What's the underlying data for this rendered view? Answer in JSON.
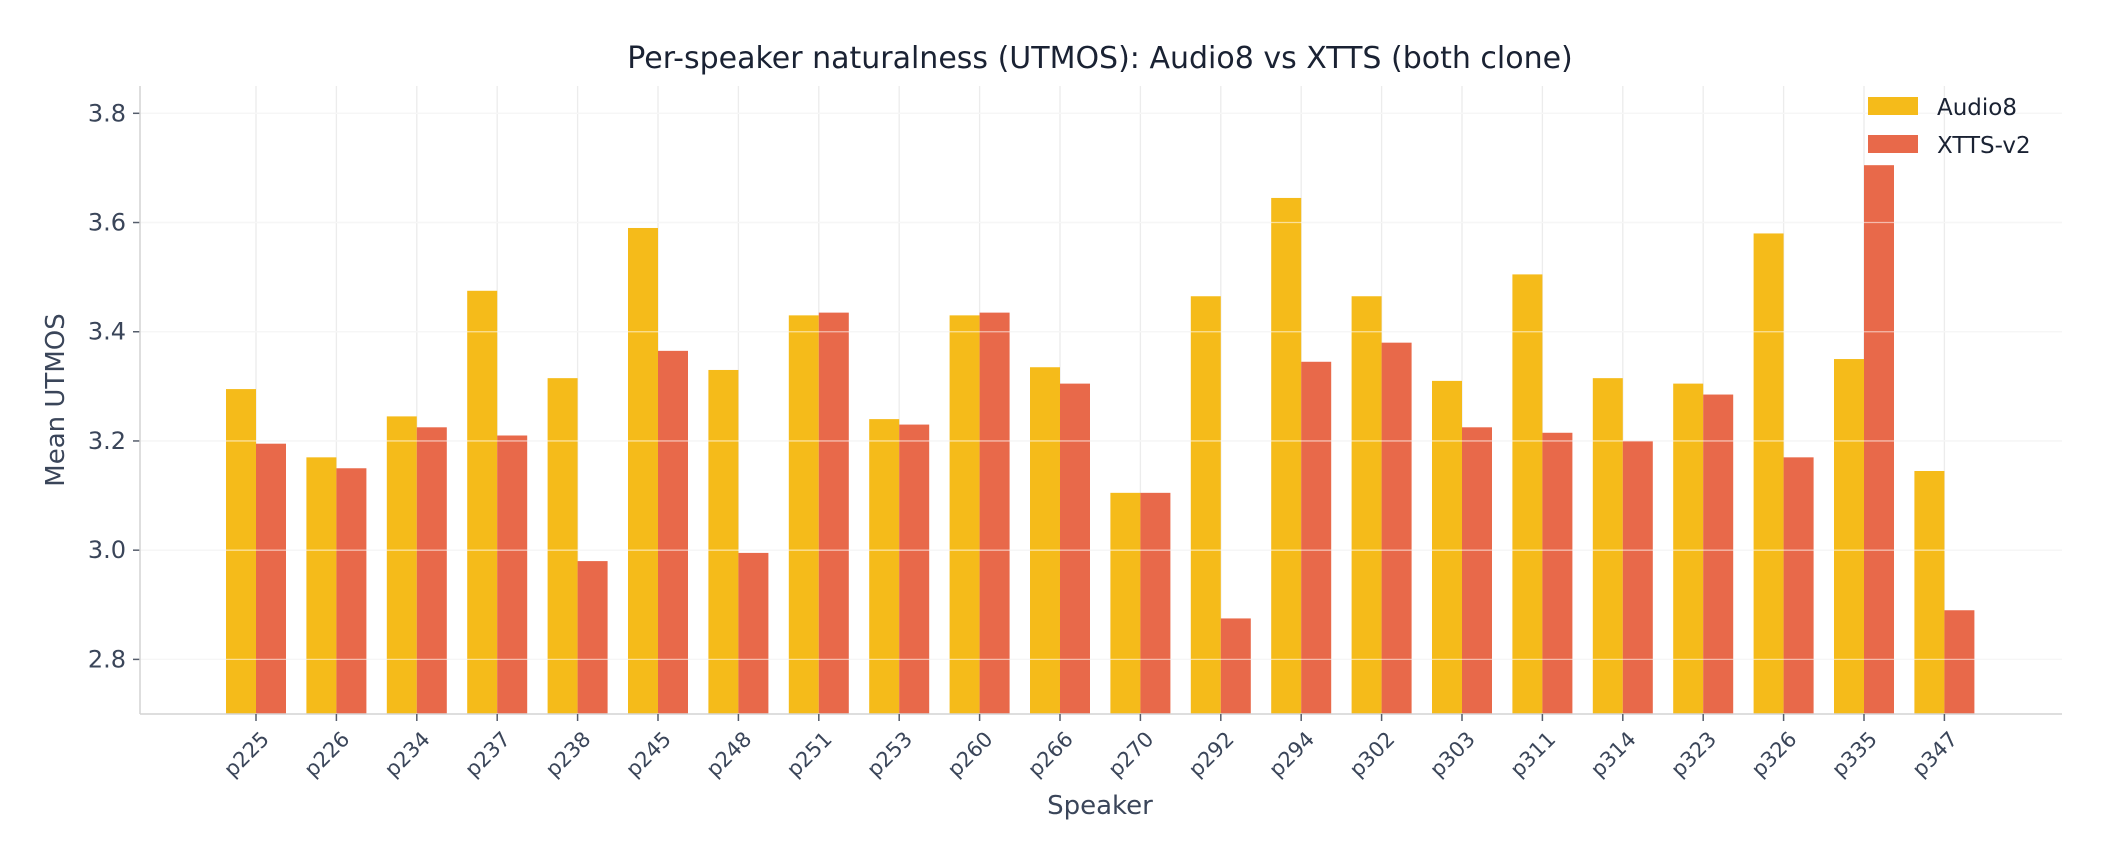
{
  "chart_data": {
    "type": "bar",
    "title": "Per-speaker naturalness (UTMOS): Audio8 vs XTTS (both clone)",
    "xlabel": "Speaker",
    "ylabel": "Mean UTMOS",
    "ylim": [
      2.7,
      3.85
    ],
    "yticks": [
      "2.8",
      "3.0",
      "3.2",
      "3.4",
      "3.6",
      "3.8"
    ],
    "grid": true,
    "legend_position": "top-right",
    "categories": [
      "p225",
      "p226",
      "p234",
      "p237",
      "p238",
      "p245",
      "p248",
      "p251",
      "p253",
      "p260",
      "p266",
      "p270",
      "p292",
      "p294",
      "p302",
      "p303",
      "p311",
      "p314",
      "p323",
      "p326",
      "p335",
      "p347"
    ],
    "series": [
      {
        "name": "Audio8",
        "color": "#f5bb1a",
        "values": [
          3.295,
          3.17,
          3.245,
          3.475,
          3.315,
          3.59,
          3.33,
          3.43,
          3.24,
          3.43,
          3.335,
          3.105,
          3.465,
          3.645,
          3.465,
          3.31,
          3.505,
          3.315,
          3.305,
          3.58,
          3.35,
          3.145
        ]
      },
      {
        "name": "XTTS-v2",
        "color": "#e8694a",
        "values": [
          3.195,
          3.15,
          3.225,
          3.21,
          2.98,
          3.365,
          2.995,
          3.435,
          3.23,
          3.435,
          3.305,
          3.105,
          2.875,
          3.345,
          3.38,
          3.225,
          3.215,
          3.2,
          3.285,
          3.17,
          3.705,
          2.89
        ]
      }
    ]
  }
}
